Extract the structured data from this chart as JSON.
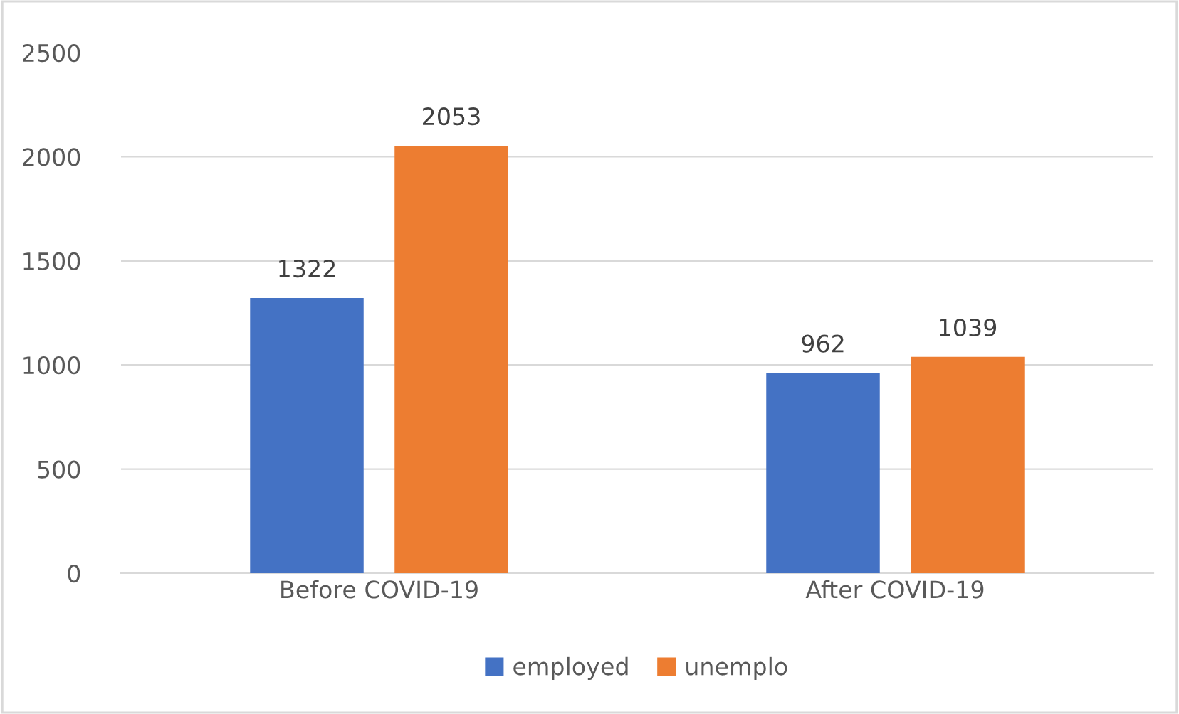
{
  "chart_data": {
    "type": "bar",
    "categories": [
      "Before COVID-19",
      "After COVID-19"
    ],
    "series": [
      {
        "name": "employed",
        "color": "#4472c4",
        "values": [
          1322,
          962
        ]
      },
      {
        "name": "unemplo",
        "color": "#ed7d31",
        "values": [
          2053,
          1039
        ]
      }
    ],
    "ylim": [
      0,
      2500
    ],
    "yticks": [
      0,
      500,
      1000,
      1500,
      2000,
      2500
    ],
    "grid": "y",
    "legend": "bottom",
    "data_labels": true
  }
}
